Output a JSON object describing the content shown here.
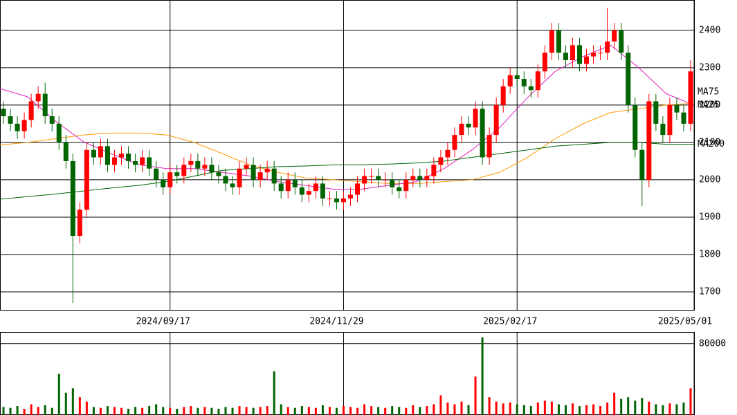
{
  "chart_data": {
    "type": "candlestick",
    "xlim": [
      0,
      100
    ],
    "xticks": [
      {
        "value": 24.5,
        "label": "2024/09/17"
      },
      {
        "value": 49.5,
        "label": "2024/11/29"
      },
      {
        "value": 74.5,
        "label": "2025/02/17"
      },
      {
        "value": 100,
        "label": "2025/05/01"
      }
    ],
    "ylim": [
      1652,
      2481
    ],
    "yticks": [
      1700,
      1800,
      1900,
      2000,
      2100,
      2200,
      2300,
      2400
    ],
    "grid": true,
    "up_color": "#ff0000",
    "down_color": "#006400",
    "open": [
      2190,
      2170,
      2150,
      2130,
      2160,
      2210,
      2230,
      2170,
      2150,
      2100,
      2050,
      1850,
      1920,
      2080,
      2060,
      2090,
      2040,
      2060,
      2070,
      2050,
      2040,
      2060,
      2030,
      2000,
      1980,
      2020,
      2010,
      2040,
      2050,
      2030,
      2040,
      2020,
      2010,
      1990,
      1980,
      2030,
      2040,
      2000,
      2020,
      2030,
      1990,
      1970,
      2000,
      1980,
      1960,
      1970,
      1990,
      1950,
      1950,
      1940,
      1950,
      1960,
      1990,
      2010,
      2010,
      2000,
      2000,
      1980,
      1970,
      2000,
      2010,
      2000,
      2010,
      2040,
      2060,
      2080,
      2120,
      2150,
      2140,
      2190,
      2060,
      2120,
      2200,
      2250,
      2280,
      2270,
      2250,
      2240,
      2290,
      2340,
      2400,
      2340,
      2320,
      2360,
      2310,
      2330,
      2340,
      2340,
      2370,
      2400,
      2340,
      2200,
      2080,
      2000,
      2210,
      2150,
      2120,
      2200,
      2180,
      2150
    ],
    "high": [
      2210,
      2190,
      2170,
      2180,
      2230,
      2250,
      2260,
      2190,
      2170,
      2120,
      2070,
      1940,
      2100,
      2100,
      2110,
      2110,
      2080,
      2090,
      2090,
      2070,
      2080,
      2080,
      2050,
      2020,
      2040,
      2040,
      2060,
      2070,
      2070,
      2060,
      2060,
      2040,
      2030,
      2010,
      2050,
      2060,
      2060,
      2040,
      2050,
      2050,
      2010,
      2020,
      2020,
      2000,
      1990,
      2010,
      2010,
      1970,
      1970,
      1970,
      1980,
      2010,
      2030,
      2030,
      2030,
      2020,
      2020,
      2000,
      2020,
      2030,
      2030,
      2030,
      2060,
      2080,
      2100,
      2140,
      2170,
      2170,
      2210,
      2210,
      2140,
      2220,
      2270,
      2300,
      2300,
      2290,
      2270,
      2310,
      2360,
      2420,
      2420,
      2360,
      2380,
      2380,
      2350,
      2360,
      2360,
      2460,
      2420,
      2420,
      2360,
      2220,
      2100,
      2230,
      2230,
      2170,
      2220,
      2220,
      2200,
      2320
    ],
    "low": [
      2150,
      2130,
      2110,
      2110,
      2140,
      2190,
      2150,
      2130,
      2080,
      2030,
      1670,
      1830,
      1900,
      2040,
      2040,
      2020,
      2020,
      2040,
      2030,
      2020,
      2020,
      2010,
      1980,
      1960,
      1960,
      1990,
      1990,
      2020,
      2010,
      2010,
      2000,
      1990,
      1970,
      1960,
      1960,
      2010,
      1980,
      1980,
      2000,
      1970,
      1950,
      1950,
      1960,
      1940,
      1940,
      1950,
      1930,
      1930,
      1920,
      1920,
      1930,
      1940,
      1970,
      1990,
      1980,
      1980,
      1960,
      1950,
      1950,
      1980,
      1980,
      1980,
      1990,
      2020,
      2040,
      2060,
      2100,
      2120,
      2120,
      2040,
      2040,
      2100,
      2180,
      2230,
      2250,
      2230,
      2220,
      2220,
      2270,
      2320,
      2320,
      2300,
      2300,
      2290,
      2290,
      2310,
      2320,
      2320,
      2350,
      2320,
      2180,
      2060,
      1930,
      1980,
      2130,
      2100,
      2100,
      2160,
      2130,
      2130
    ],
    "close": [
      2170,
      2150,
      2130,
      2160,
      2210,
      2230,
      2170,
      2150,
      2100,
      2050,
      1850,
      1920,
      2080,
      2060,
      2090,
      2040,
      2060,
      2070,
      2050,
      2040,
      2060,
      2030,
      2000,
      1980,
      2020,
      2010,
      2040,
      2050,
      2030,
      2040,
      2020,
      2010,
      1990,
      1980,
      2030,
      2040,
      2000,
      2020,
      2030,
      1990,
      1970,
      2000,
      1980,
      1960,
      1970,
      1990,
      1950,
      1950,
      1940,
      1950,
      1960,
      1990,
      2010,
      2010,
      2000,
      2000,
      1980,
      1970,
      2000,
      2010,
      2000,
      2010,
      2040,
      2060,
      2080,
      2120,
      2150,
      2140,
      2190,
      2060,
      2120,
      2200,
      2250,
      2280,
      2270,
      2250,
      2240,
      2290,
      2340,
      2400,
      2340,
      2320,
      2360,
      2310,
      2330,
      2340,
      2340,
      2370,
      2400,
      2340,
      2200,
      2080,
      2000,
      2210,
      2150,
      2120,
      2200,
      2180,
      2150,
      2290
    ],
    "moving_averages": [
      {
        "name": "MA75",
        "color": "#ff9900",
        "x": [
          0,
          4,
          8,
          12,
          16,
          20,
          24,
          28,
          32,
          36,
          40,
          44,
          48,
          52,
          56,
          60,
          64,
          68,
          72,
          76,
          80,
          84,
          88,
          92,
          96,
          100
        ],
        "values": [
          2093,
          2100,
          2110,
          2120,
          2125,
          2125,
          2120,
          2100,
          2070,
          2040,
          2020,
          2005,
          2000,
          1995,
          1990,
          1990,
          1995,
          2000,
          2020,
          2060,
          2110,
          2150,
          2180,
          2190,
          2200,
          2205
        ]
      },
      {
        "name": "MA25",
        "color": "#e020c0",
        "x": [
          0,
          4,
          8,
          12,
          16,
          20,
          24,
          28,
          32,
          36,
          40,
          44,
          48,
          52,
          56,
          60,
          64,
          68,
          72,
          76,
          80,
          84,
          88,
          92,
          96,
          100
        ],
        "values": [
          2244,
          2222,
          2157,
          2102,
          2070,
          2040,
          2030,
          2030,
          2020,
          2010,
          1995,
          1985,
          1975,
          1975,
          1985,
          1995,
          2030,
          2080,
          2140,
          2220,
          2290,
          2330,
          2360,
          2300,
          2230,
          2200
        ]
      },
      {
        "name": "MA200",
        "color": "#006400",
        "x": [
          0,
          4,
          8,
          12,
          16,
          20,
          24,
          28,
          32,
          36,
          40,
          44,
          48,
          52,
          56,
          60,
          64,
          68,
          72,
          76,
          80,
          84,
          88,
          92,
          96,
          100
        ],
        "values": [
          1948,
          1955,
          1962,
          1970,
          1978,
          1985,
          1995,
          2010,
          2025,
          2030,
          2035,
          2037,
          2040,
          2040,
          2042,
          2045,
          2050,
          2060,
          2070,
          2080,
          2090,
          2095,
          2100,
          2100,
          2095,
          2095
        ]
      }
    ],
    "volume": {
      "ylim": [
        0,
        93000
      ],
      "yticks": [
        80000
      ],
      "values": [
        9000,
        8000,
        10000,
        7000,
        12000,
        9000,
        11000,
        8000,
        46000,
        25000,
        30000,
        20000,
        15000,
        9000,
        8000,
        10000,
        9000,
        8000,
        7000,
        9000,
        8000,
        10000,
        12000,
        9000,
        8000,
        7000,
        9000,
        10000,
        8000,
        9000,
        8000,
        7000,
        9000,
        8000,
        10000,
        9000,
        8000,
        9000,
        10000,
        49000,
        12000,
        9000,
        8000,
        10000,
        9000,
        8000,
        11000,
        9000,
        8000,
        10000,
        9000,
        8000,
        12000,
        10000,
        9000,
        8000,
        10000,
        9000,
        8000,
        11000,
        9000,
        10000,
        12000,
        22000,
        14000,
        12000,
        15000,
        11000,
        43000,
        87000,
        20000,
        15000,
        13000,
        14000,
        12000,
        11000,
        10000,
        14000,
        16000,
        15000,
        12000,
        11000,
        13000,
        10000,
        11000,
        12000,
        10000,
        14000,
        25000,
        18000,
        20000,
        16000,
        19000,
        15000,
        12000,
        11000,
        13000,
        12000,
        14000,
        30000
      ]
    }
  }
}
